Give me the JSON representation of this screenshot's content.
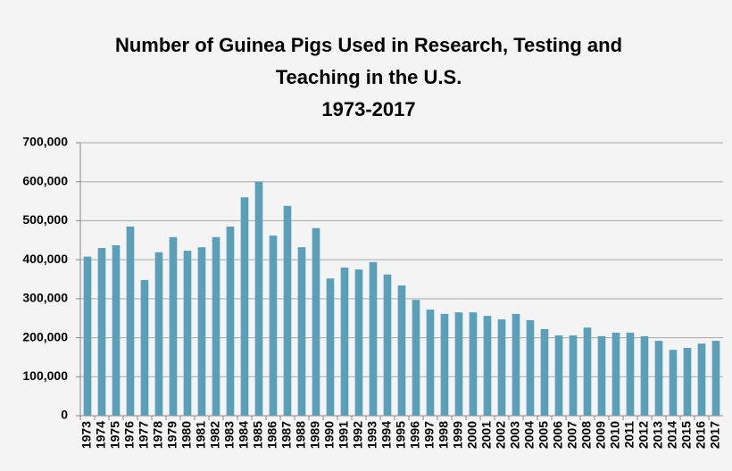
{
  "chart_data": {
    "type": "bar",
    "title": [
      "Number of Guinea Pigs Used in Research, Testing and",
      "Teaching in the U.S.",
      "1973-2017"
    ],
    "categories": [
      "1973",
      "1974",
      "1975",
      "1976",
      "1977",
      "1978",
      "1979",
      "1980",
      "1981",
      "1982",
      "1983",
      "1984",
      "1985",
      "1986",
      "1987",
      "1988",
      "1989",
      "1990",
      "1991",
      "1992",
      "1993",
      "1994",
      "1995",
      "1996",
      "1997",
      "1998",
      "1999",
      "2000",
      "2001",
      "2002",
      "2003",
      "2004",
      "2005",
      "2006",
      "2007",
      "2008",
      "2009",
      "2010",
      "2011",
      "2012",
      "2013",
      "2014",
      "2015",
      "2016",
      "2017"
    ],
    "values": [
      408000,
      430000,
      437000,
      485000,
      348000,
      419000,
      458000,
      423000,
      432000,
      458000,
      485000,
      560000,
      600000,
      462000,
      538000,
      432000,
      481000,
      352000,
      380000,
      375000,
      394000,
      362000,
      334000,
      297000,
      272000,
      261000,
      265000,
      265000,
      256000,
      247000,
      261000,
      245000,
      222000,
      206000,
      206000,
      226000,
      204000,
      213000,
      213000,
      204000,
      192000,
      169000,
      174000,
      185000,
      192000
    ],
    "color": "#5b9fb8",
    "ylim": [
      0,
      700000
    ],
    "yticks": [
      0,
      {
        "value": 100000,
        "label": "100,000"
      },
      {
        "value": 200000,
        "label": "200,000"
      },
      {
        "value": 300000,
        "label": "300,000"
      },
      {
        "value": 400000,
        "label": "400,000"
      },
      {
        "value": 500000,
        "label": "500,000"
      },
      {
        "value": 600000,
        "label": "600,000"
      },
      {
        "value": 700000,
        "label": "700,000"
      }
    ],
    "grid": true
  }
}
